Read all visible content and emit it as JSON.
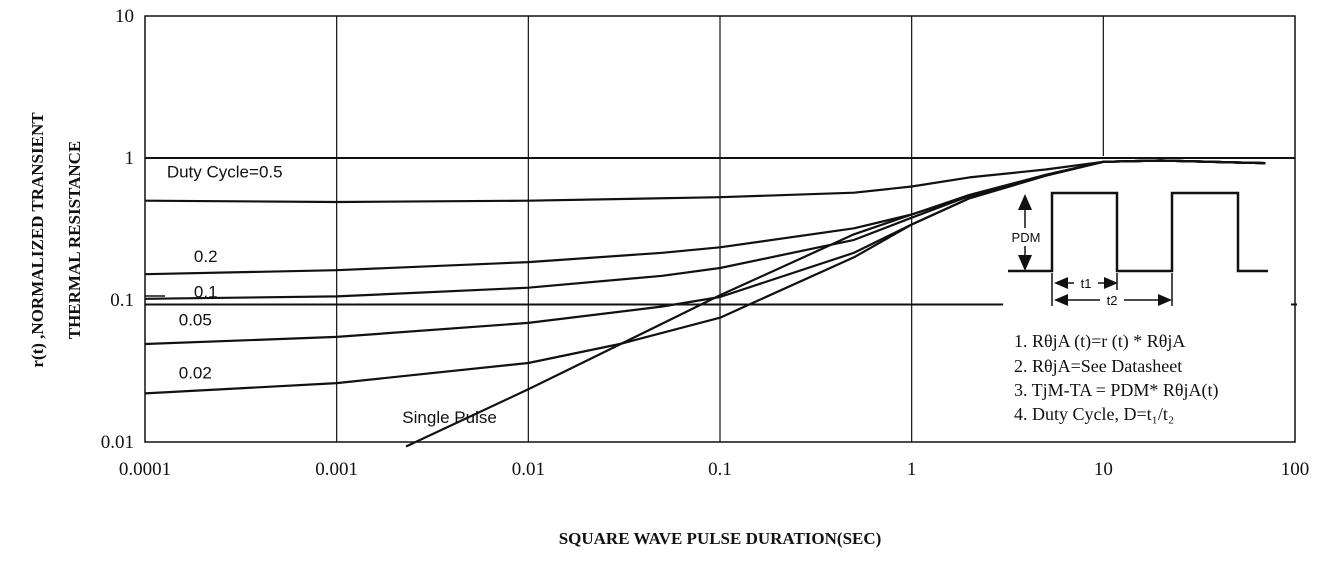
{
  "chart_data": {
    "type": "line",
    "xlabel": "SQUARE WAVE PULSE DURATION(SEC)",
    "ylabel_line1": "r(t) ,NORMALIZED TRANSIENT",
    "ylabel_line2": "THERMAL RESISTANCE",
    "x_scale": "log",
    "y_scale": "log",
    "xlim": [
      0.0001,
      100
    ],
    "ylim": [
      0.01,
      10
    ],
    "x_ticks": [
      {
        "value": 0.0001,
        "label": "0.0001"
      },
      {
        "value": 0.001,
        "label": "0.001"
      },
      {
        "value": 0.01,
        "label": "0.01"
      },
      {
        "value": 0.1,
        "label": "0.1"
      },
      {
        "value": 1,
        "label": "1"
      },
      {
        "value": 10,
        "label": "10"
      },
      {
        "value": 100,
        "label": "100"
      }
    ],
    "y_ticks": [
      {
        "value": 0.01,
        "label": "0.01"
      },
      {
        "value": 0.1,
        "label": "0.1"
      },
      {
        "value": 1,
        "label": "1"
      },
      {
        "value": 10,
        "label": "10"
      }
    ],
    "grid": true,
    "series": [
      {
        "name": "Duty Cycle=0.5",
        "label_at": [
          0.00013,
          0.73
        ],
        "x": [
          0.0001,
          0.001,
          0.01,
          0.1,
          0.5,
          1,
          2,
          5,
          10,
          20,
          50,
          70
        ],
        "y": [
          0.5,
          0.49,
          0.5,
          0.53,
          0.57,
          0.63,
          0.73,
          0.83,
          0.94,
          0.96,
          0.93,
          0.92
        ]
      },
      {
        "name": "0.2",
        "label_at": [
          0.00018,
          0.185
        ],
        "x": [
          0.0001,
          0.001,
          0.01,
          0.05,
          0.1,
          0.5,
          1,
          2,
          5,
          10,
          20,
          50,
          70
        ],
        "y": [
          0.152,
          0.162,
          0.185,
          0.215,
          0.235,
          0.32,
          0.4,
          0.54,
          0.76,
          0.94,
          0.96,
          0.93,
          0.92
        ]
      },
      {
        "name": "0.1",
        "label_at": [
          0.00018,
          0.104
        ],
        "x": [
          0.0001,
          0.001,
          0.01,
          0.05,
          0.1,
          0.5,
          1,
          2,
          5,
          10,
          20,
          50,
          70
        ],
        "y": [
          0.102,
          0.106,
          0.122,
          0.148,
          0.168,
          0.265,
          0.38,
          0.54,
          0.76,
          0.94,
          0.96,
          0.93,
          0.92
        ]
      },
      {
        "name": "0.05",
        "label_at": [
          0.00015,
          0.066
        ],
        "x": [
          0.0001,
          0.001,
          0.01,
          0.05,
          0.1,
          0.5,
          1,
          2,
          5,
          10,
          20,
          50,
          70
        ],
        "y": [
          0.049,
          0.055,
          0.069,
          0.09,
          0.105,
          0.215,
          0.34,
          0.52,
          0.75,
          0.94,
          0.96,
          0.93,
          0.92
        ]
      },
      {
        "name": "0.02",
        "label_at": [
          0.00015,
          0.028
        ],
        "x": [
          0.0001,
          0.001,
          0.01,
          0.03,
          0.1,
          0.5,
          1,
          2,
          5,
          10,
          20,
          50,
          70
        ],
        "y": [
          0.022,
          0.026,
          0.036,
          0.049,
          0.075,
          0.2,
          0.34,
          0.52,
          0.75,
          0.94,
          0.96,
          0.93,
          0.92
        ]
      },
      {
        "name": "Single Pulse",
        "label_at": [
          0.0022,
          0.0136
        ],
        "x": [
          0.0023,
          0.01,
          0.1,
          0.5,
          1,
          2,
          5,
          10,
          20,
          50,
          70
        ],
        "y": [
          0.0093,
          0.0235,
          0.108,
          0.29,
          0.4,
          0.55,
          0.76,
          0.94,
          0.96,
          0.93,
          0.92
        ]
      }
    ],
    "reference_lines": [
      {
        "y": 1,
        "x_from": 0.0001,
        "x_to": 100
      },
      {
        "y": 0.093,
        "x_from": 0.0001,
        "x_to": 3
      }
    ],
    "annotations": [
      "1. RθjA (t)=r (t) * RθjA",
      "2. RθjA=See Datasheet",
      "3. TjM-TA = PDM* RθjA(t)",
      "4. Duty Cycle, D=t₁/t₂"
    ],
    "inset": {
      "pdm_label": "PDM",
      "t1_label": "t1",
      "t2_label": "t2"
    }
  },
  "colors": {
    "line": "#111111",
    "grid": "#111111",
    "background": "#ffffff"
  }
}
